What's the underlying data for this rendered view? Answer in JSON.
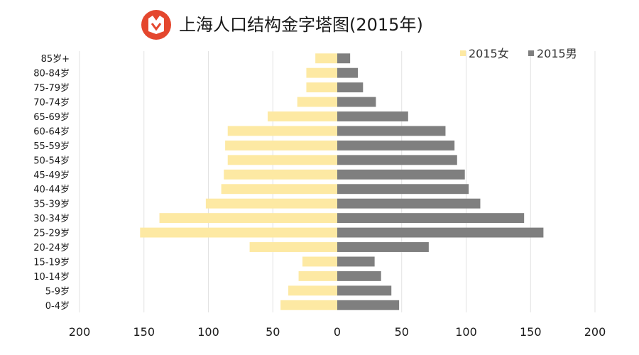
{
  "chart_data": {
    "type": "bar",
    "orientation": "horizontal",
    "title": "上海人口结构金字塔图(2015年)",
    "categories": [
      "85岁+",
      "80-84岁",
      "75-79岁",
      "70-74岁",
      "65-69岁",
      "60-64岁",
      "55-59岁",
      "50-54岁",
      "45-49岁",
      "40-44岁",
      "35-39岁",
      "30-34岁",
      "25-29岁",
      "20-24岁",
      "15-19岁",
      "10-14岁",
      "5-9岁",
      "0-4岁"
    ],
    "series": [
      {
        "name": "2015女",
        "side": "left",
        "color": "#fde9a3",
        "values": [
          17,
          24,
          24,
          31,
          54,
          85,
          87,
          85,
          88,
          90,
          102,
          138,
          153,
          68,
          27,
          30,
          38,
          44
        ]
      },
      {
        "name": "2015男",
        "side": "right",
        "color": "#7f7f7f",
        "values": [
          10,
          16,
          20,
          30,
          55,
          84,
          91,
          93,
          99,
          102,
          111,
          145,
          160,
          71,
          29,
          34,
          42,
          48
        ]
      }
    ],
    "xlim": [
      -200,
      200
    ],
    "x_ticks": [
      {
        "value": -200,
        "label": "200"
      },
      {
        "value": -150,
        "label": "150"
      },
      {
        "value": -100,
        "label": "100"
      },
      {
        "value": -50,
        "label": "50"
      },
      {
        "value": 0,
        "label": "0"
      },
      {
        "value": 50,
        "label": "50"
      },
      {
        "value": 100,
        "label": "100"
      },
      {
        "value": 150,
        "label": "150"
      },
      {
        "value": 200,
        "label": "200"
      }
    ],
    "grid": true,
    "legend_position": "top-right"
  },
  "logo": {
    "name": "logo-icon",
    "color": "#e4472e"
  }
}
